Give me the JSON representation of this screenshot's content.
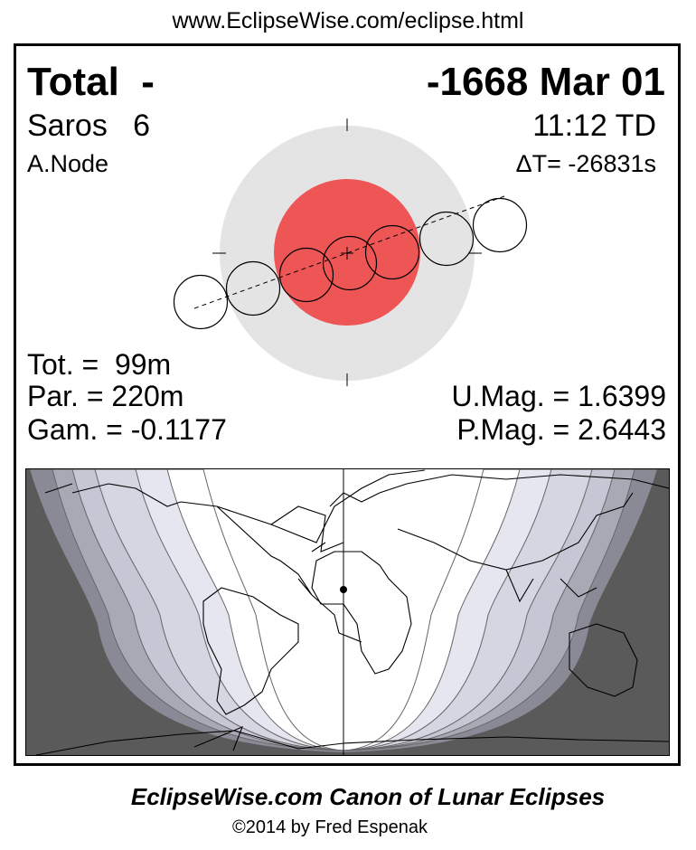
{
  "url": "www.EclipseWise.com/eclipse.html",
  "header": {
    "eclipse_type": "Total  -",
    "date": "-1668 Mar 01",
    "saros_label": "Saros   6",
    "time": "11:12 TD",
    "node": "A.Node",
    "delta_t": "ΔT= -26831s"
  },
  "stats": {
    "totality": "Tot. =  99m",
    "partial": "Par. = 220m",
    "gamma": "Gam. = -0.1177",
    "umbral_mag": "U.Mag. = 1.6399",
    "penumbral_mag": "P.Mag. = 2.6443"
  },
  "colors": {
    "umbra": "#ee5555",
    "penumbra": "#e4e4e4",
    "night": "#5a5a5a",
    "bands": [
      "#8a8a96",
      "#a9a9b6",
      "#c6c6d4",
      "#d6d6e3",
      "#e6e6f0"
    ]
  },
  "footer": {
    "title": "EclipseWise.com Canon of Lunar Eclipses",
    "copyright": "©2014 by Fred Espenak"
  }
}
